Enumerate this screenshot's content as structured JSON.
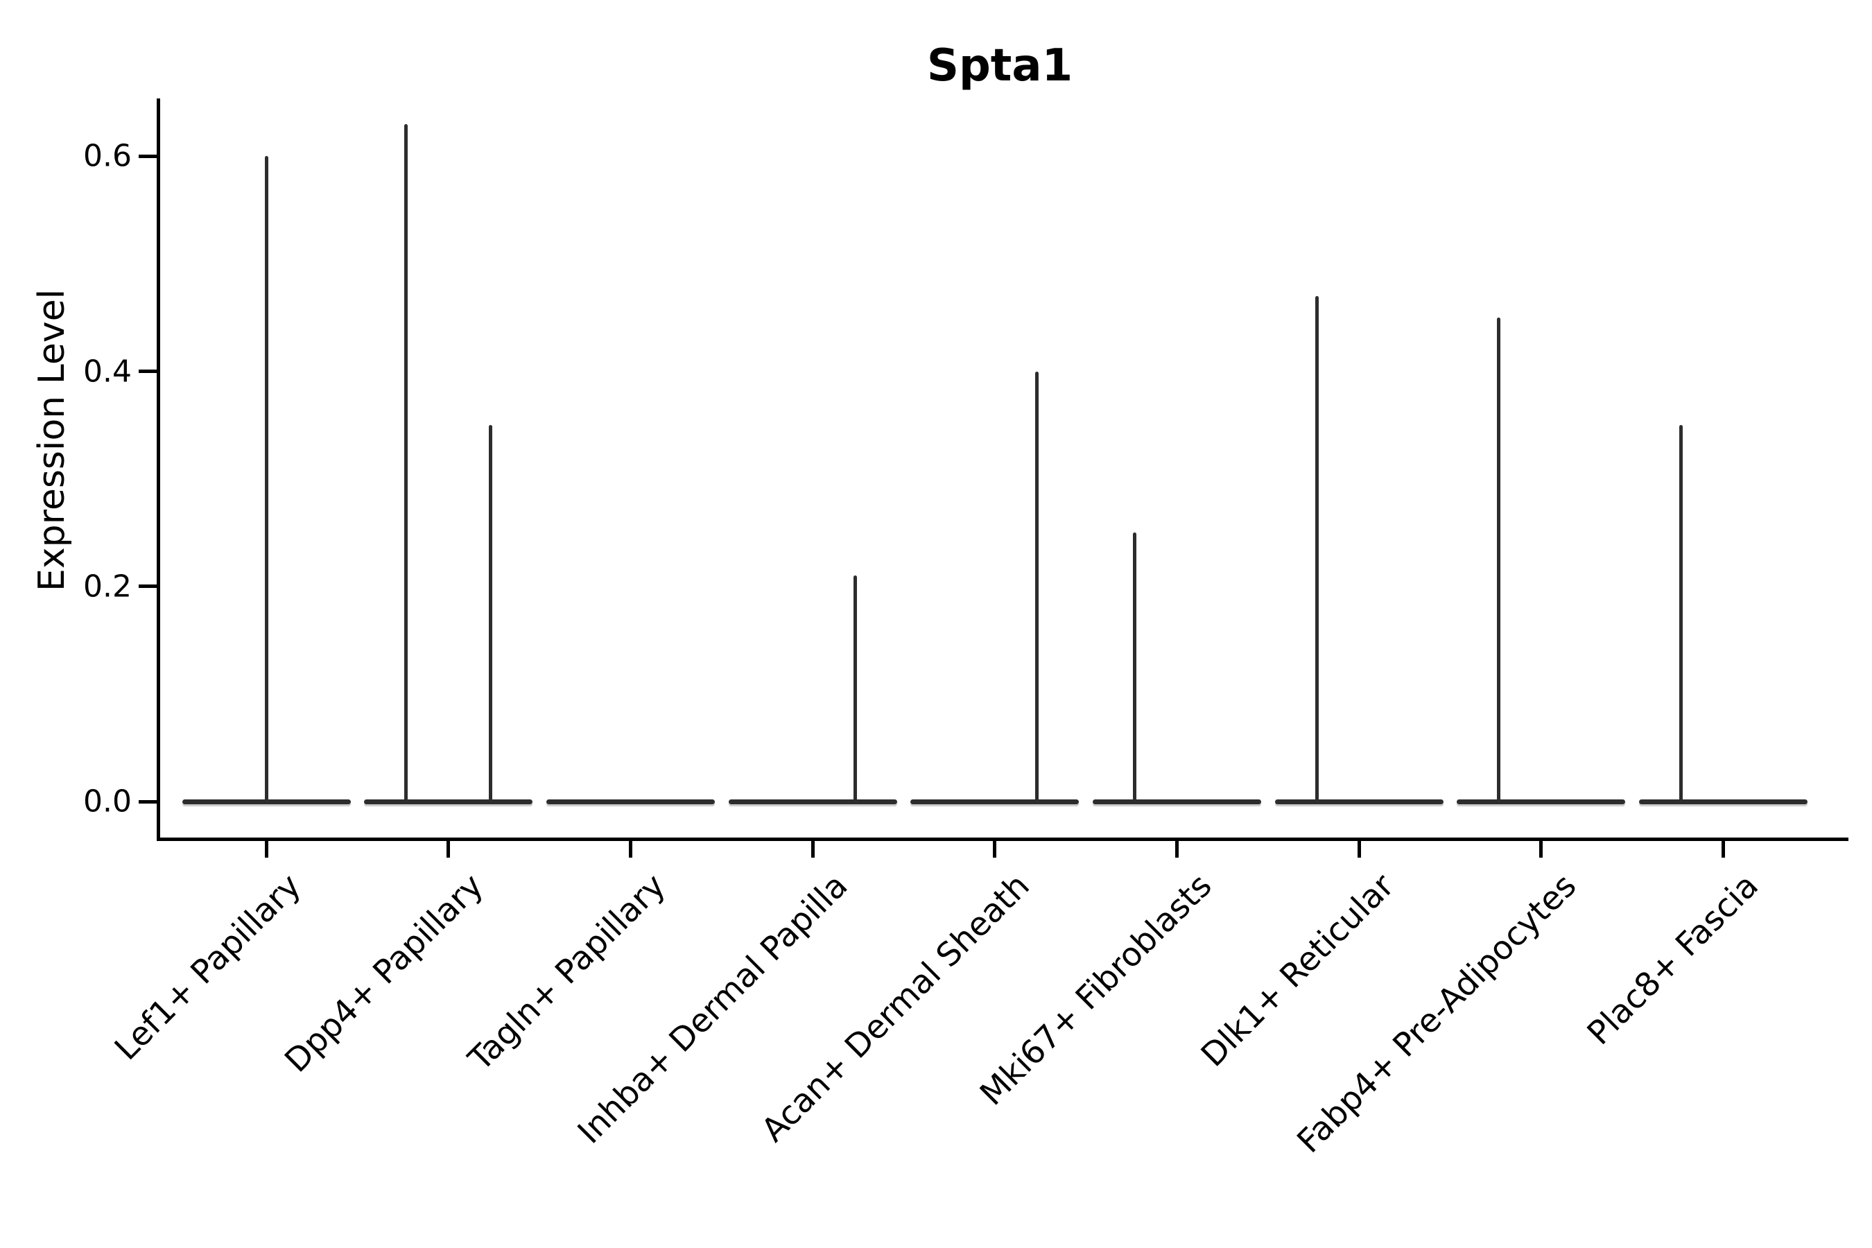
{
  "chart_data": {
    "type": "violin",
    "title": "Spta1",
    "ylabel": "Expression Level",
    "xlabel": "",
    "grid": false,
    "legend": "none",
    "ytick_labels": [
      "0.0",
      "0.2",
      "0.4",
      "0.6"
    ],
    "ytick_values": [
      0.0,
      0.2,
      0.4,
      0.6
    ],
    "ylim": [
      -0.034,
      0.654
    ],
    "categories": [
      "Lef1+ Papillary",
      "Dpp4+ Papillary",
      "Tagln+ Papillary",
      "Inhba+ Dermal Papilla",
      "Acan+ Dermal Sheath",
      "Mki67+ Fibroblasts",
      "Dlk1+ Reticular",
      "Fabp4+ Pre-Adipocytes",
      "Plac8+ Fascia"
    ],
    "violins": [
      {
        "category": "Lef1+ Papillary",
        "zero_bulk": true,
        "spikes": [
          {
            "offset": "center",
            "max": 0.6
          }
        ]
      },
      {
        "category": "Dpp4+ Papillary",
        "zero_bulk": true,
        "spikes": [
          {
            "offset": "left",
            "max": 0.63
          },
          {
            "offset": "right",
            "max": 0.35
          }
        ]
      },
      {
        "category": "Tagln+ Papillary",
        "zero_bulk": true,
        "spikes": []
      },
      {
        "category": "Inhba+ Dermal Papilla",
        "zero_bulk": true,
        "spikes": [
          {
            "offset": "right",
            "max": 0.21
          }
        ]
      },
      {
        "category": "Acan+ Dermal Sheath",
        "zero_bulk": true,
        "spikes": [
          {
            "offset": "right",
            "max": 0.4
          }
        ]
      },
      {
        "category": "Mki67+ Fibroblasts",
        "zero_bulk": true,
        "spikes": [
          {
            "offset": "left",
            "max": 0.25
          }
        ]
      },
      {
        "category": "Dlk1+ Reticular",
        "zero_bulk": true,
        "spikes": [
          {
            "offset": "left",
            "max": 0.47
          }
        ]
      },
      {
        "category": "Fabp4+ Pre-Adipocytes",
        "zero_bulk": true,
        "spikes": [
          {
            "offset": "left",
            "max": 0.45
          }
        ]
      },
      {
        "category": "Plac8+ Fascia",
        "zero_bulk": true,
        "spikes": [
          {
            "offset": "left",
            "max": 0.35
          }
        ]
      }
    ],
    "colors": {
      "violin_line": "#2d2d2d",
      "axis": "#000000",
      "text": "#000000",
      "background": "#ffffff"
    }
  }
}
